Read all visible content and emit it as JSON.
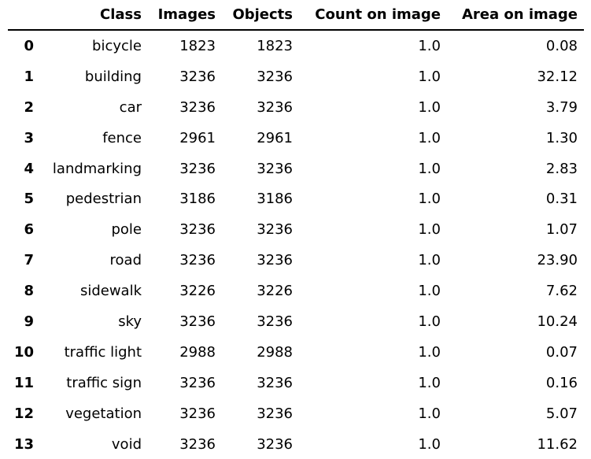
{
  "table": {
    "headers": [
      "",
      "Class",
      "Images",
      "Objects",
      "Count on image",
      "Area on image"
    ],
    "rows": [
      {
        "index": "0",
        "class": "bicycle",
        "images": "1823",
        "objects": "1823",
        "count": "1.0",
        "area": "0.08"
      },
      {
        "index": "1",
        "class": "building",
        "images": "3236",
        "objects": "3236",
        "count": "1.0",
        "area": "32.12"
      },
      {
        "index": "2",
        "class": "car",
        "images": "3236",
        "objects": "3236",
        "count": "1.0",
        "area": "3.79"
      },
      {
        "index": "3",
        "class": "fence",
        "images": "2961",
        "objects": "2961",
        "count": "1.0",
        "area": "1.30"
      },
      {
        "index": "4",
        "class": "landmarking",
        "images": "3236",
        "objects": "3236",
        "count": "1.0",
        "area": "2.83"
      },
      {
        "index": "5",
        "class": "pedestrian",
        "images": "3186",
        "objects": "3186",
        "count": "1.0",
        "area": "0.31"
      },
      {
        "index": "6",
        "class": "pole",
        "images": "3236",
        "objects": "3236",
        "count": "1.0",
        "area": "1.07"
      },
      {
        "index": "7",
        "class": "road",
        "images": "3236",
        "objects": "3236",
        "count": "1.0",
        "area": "23.90"
      },
      {
        "index": "8",
        "class": "sidewalk",
        "images": "3226",
        "objects": "3226",
        "count": "1.0",
        "area": "7.62"
      },
      {
        "index": "9",
        "class": "sky",
        "images": "3236",
        "objects": "3236",
        "count": "1.0",
        "area": "10.24"
      },
      {
        "index": "10",
        "class": "traffic light",
        "images": "2988",
        "objects": "2988",
        "count": "1.0",
        "area": "0.07"
      },
      {
        "index": "11",
        "class": "traffic sign",
        "images": "3236",
        "objects": "3236",
        "count": "1.0",
        "area": "0.16"
      },
      {
        "index": "12",
        "class": "vegetation",
        "images": "3236",
        "objects": "3236",
        "count": "1.0",
        "area": "5.07"
      },
      {
        "index": "13",
        "class": "void",
        "images": "3236",
        "objects": "3236",
        "count": "1.0",
        "area": "11.62"
      }
    ]
  }
}
